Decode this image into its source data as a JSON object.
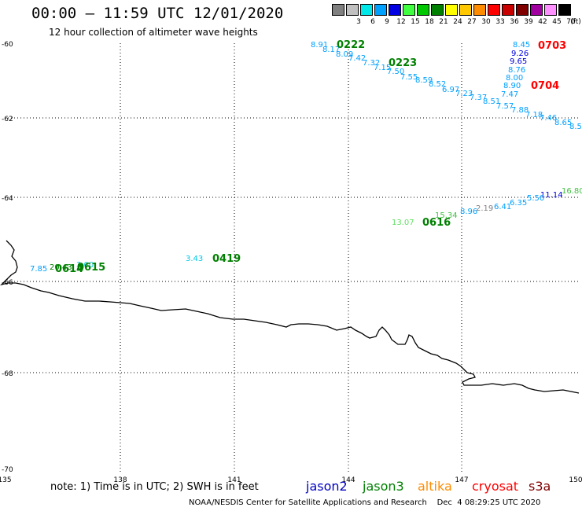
{
  "header": {
    "title": "00:00 – 11:59 UTC 12/01/2020",
    "subtitle": "12 hour collection of altimeter wave heights"
  },
  "color_scale": {
    "unit_label": "(ft)",
    "steps": [
      {
        "label": "",
        "color": "#808080"
      },
      {
        "label": "3",
        "color": "#c0c0c0"
      },
      {
        "label": "6",
        "color": "#00e8e8"
      },
      {
        "label": "9",
        "color": "#00a0ff"
      },
      {
        "label": "12",
        "color": "#0000e0"
      },
      {
        "label": "15",
        "color": "#40ff40"
      },
      {
        "label": "18",
        "color": "#00c800"
      },
      {
        "label": "21",
        "color": "#008000"
      },
      {
        "label": "24",
        "color": "#ffff00"
      },
      {
        "label": "27",
        "color": "#ffc800"
      },
      {
        "label": "30",
        "color": "#ff8c00"
      },
      {
        "label": "33",
        "color": "#ff0000"
      },
      {
        "label": "36",
        "color": "#c80000"
      },
      {
        "label": "39",
        "color": "#800000"
      },
      {
        "label": "42",
        "color": "#a000a0"
      },
      {
        "label": "45",
        "color": "#ff90ff"
      },
      {
        "label": "70",
        "color": "#000000"
      }
    ]
  },
  "axes": {
    "lat_labels": [
      "-60",
      "-62",
      "-64",
      "-66",
      "-68",
      "-70"
    ],
    "lon_labels": [
      "135",
      "138",
      "141",
      "144",
      "147",
      "150"
    ]
  },
  "pass_labels": [
    {
      "text": "0222",
      "color": "#008000"
    },
    {
      "text": "0223",
      "color": "#008000"
    },
    {
      "text": "0703",
      "color": "#ff0000"
    },
    {
      "text": "0704",
      "color": "#ff0000"
    },
    {
      "text": "0616",
      "color": "#008000"
    },
    {
      "text": "0419",
      "color": "#008000"
    },
    {
      "text": "0614",
      "color": "#008000"
    },
    {
      "text": "0615",
      "color": "#008000"
    }
  ],
  "swh_values": [
    {
      "text": "8.91",
      "color": "#00a0ff"
    },
    {
      "text": "8.17",
      "color": "#00a0ff"
    },
    {
      "text": "8.09",
      "color": "#00a0ff"
    },
    {
      "text": "7.42",
      "color": "#00a0ff"
    },
    {
      "text": "7.32",
      "color": "#00a0ff"
    },
    {
      "text": "7.15",
      "color": "#00a0ff"
    },
    {
      "text": "7.50",
      "color": "#00a0ff"
    },
    {
      "text": "7.55",
      "color": "#00a0ff"
    },
    {
      "text": "8.59",
      "color": "#00a0ff"
    },
    {
      "text": "8.52",
      "color": "#00a0ff"
    },
    {
      "text": "6.97",
      "color": "#00a0ff"
    },
    {
      "text": "7.23",
      "color": "#00a0ff"
    },
    {
      "text": "7.37",
      "color": "#00a0ff"
    },
    {
      "text": "8.51",
      "color": "#00a0ff"
    },
    {
      "text": "7.57",
      "color": "#00a0ff"
    },
    {
      "text": "7.88",
      "color": "#00a0ff"
    },
    {
      "text": "7.18",
      "color": "#00a0ff"
    },
    {
      "text": "7.46",
      "color": "#00a0ff"
    },
    {
      "text": "8.65",
      "color": "#00a0ff"
    },
    {
      "text": "8.5",
      "color": "#00a0ff"
    },
    {
      "text": "8.45",
      "color": "#00a0ff"
    },
    {
      "text": "9.26",
      "color": "#0000e0"
    },
    {
      "text": "9.65",
      "color": "#0000e0"
    },
    {
      "text": "8.76",
      "color": "#00a0ff"
    },
    {
      "text": "8.00",
      "color": "#00a0ff"
    },
    {
      "text": "8.90",
      "color": "#00a0ff"
    },
    {
      "text": "7.47",
      "color": "#00a0ff"
    },
    {
      "text": "16.80",
      "color": "#40c040"
    },
    {
      "text": "11.14",
      "color": "#0000e0"
    },
    {
      "text": "5.50",
      "color": "#00a0ff"
    },
    {
      "text": "6.35",
      "color": "#00a0ff"
    },
    {
      "text": "6.41",
      "color": "#00a0ff"
    },
    {
      "text": "2.19",
      "color": "#808080"
    },
    {
      "text": "8.96",
      "color": "#00a0ff"
    },
    {
      "text": "15.34",
      "color": "#40c040"
    },
    {
      "text": "13.07",
      "color": "#60e060"
    },
    {
      "text": "3.43",
      "color": "#00c8e8"
    },
    {
      "text": "7.85",
      "color": "#00a0ff"
    },
    {
      "text": "20.43",
      "color": "#008000"
    },
    {
      "text": "3.00",
      "color": "#00c8e8"
    }
  ],
  "footer": {
    "note": "note:  1) Time is in UTC;  2) SWH is in feet",
    "credit": "NOAA/NESDIS Center for Satellite Applications and Research    Dec  4 08:29:25 UTC 2020",
    "satellites": [
      {
        "name": "jason2",
        "color": "#0000c0"
      },
      {
        "name": "jason3",
        "color": "#008000"
      },
      {
        "name": "altika",
        "color": "#ff8c00"
      },
      {
        "name": "cryosat",
        "color": "#ff0000"
      },
      {
        "name": "s3a",
        "color": "#800000"
      }
    ]
  }
}
